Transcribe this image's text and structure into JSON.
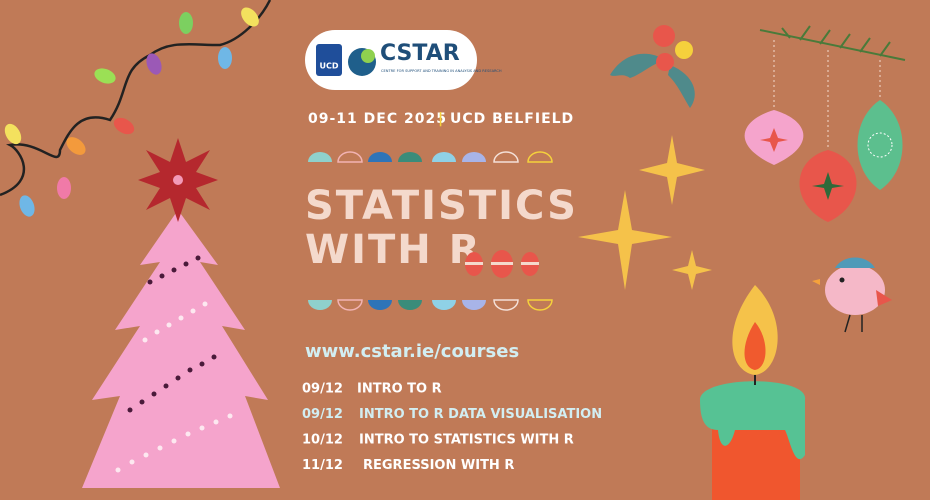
{
  "logo": {
    "ucd": "UCD",
    "name": "CSTAR",
    "tagline": "CENTRE FOR SUPPORT AND TRAINING IN ANALYSIS AND RESEARCH"
  },
  "event": {
    "dates": "09-11 DEC 2025",
    "separator": "|",
    "venue": "UCD BELFIELD"
  },
  "title": [
    "STATISTICS",
    "WITH R"
  ],
  "url": "www.cstar.ie/courses",
  "schedule": [
    {
      "date": "09/12",
      "course": "INTRO TO R"
    },
    {
      "date": "09/12",
      "course": "INTRO TO R DATA VISUALISATION"
    },
    {
      "date": "10/12",
      "course": "INTRO TO STATISTICS WITH R"
    },
    {
      "date": "11/12",
      "course": "REGRESSION WITH R"
    }
  ]
}
